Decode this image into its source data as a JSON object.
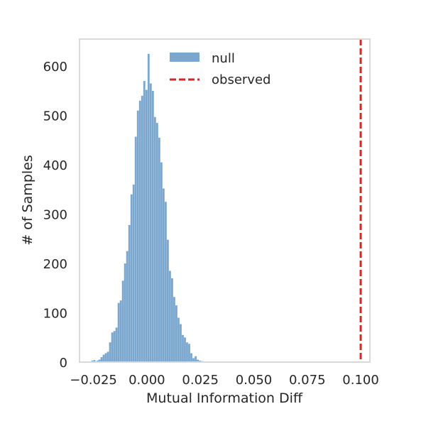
{
  "chart_data": {
    "type": "bar",
    "subtype": "histogram",
    "xlabel": "Mutual Information Diff",
    "ylabel": "# of Samples",
    "xlim": [
      -0.0315,
      0.1043
    ],
    "ylim": [
      0,
      655
    ],
    "xticks": [
      "−0.025",
      "0.000",
      "0.025",
      "0.050",
      "0.075",
      "0.100"
    ],
    "xtick_values": [
      -0.025,
      0.0,
      0.025,
      0.05,
      0.075,
      0.1
    ],
    "yticks": [
      "0",
      "100",
      "200",
      "300",
      "400",
      "500",
      "600"
    ],
    "ytick_values": [
      0,
      100,
      200,
      300,
      400,
      500,
      600
    ],
    "grid": false,
    "legend_position": "top-center",
    "series": [
      {
        "name": "null",
        "kind": "histogram",
        "color": "#7ba7cf",
        "bin_width": 0.00104,
        "bins": [
          [
            -0.0255,
            3
          ],
          [
            -0.0245,
            4
          ],
          [
            -0.023,
            3
          ],
          [
            -0.0222,
            5
          ],
          [
            -0.0212,
            10
          ],
          [
            -0.0202,
            15
          ],
          [
            -0.0192,
            18
          ],
          [
            -0.0182,
            21
          ],
          [
            -0.0172,
            40
          ],
          [
            -0.0162,
            60
          ],
          [
            -0.0152,
            63
          ],
          [
            -0.0142,
            70
          ],
          [
            -0.0132,
            120
          ],
          [
            -0.0122,
            125
          ],
          [
            -0.0112,
            165
          ],
          [
            -0.0102,
            200
          ],
          [
            -0.0092,
            225
          ],
          [
            -0.0082,
            278
          ],
          [
            -0.0072,
            340
          ],
          [
            -0.0062,
            360
          ],
          [
            -0.0052,
            457
          ],
          [
            -0.0042,
            510
          ],
          [
            -0.0032,
            530
          ],
          [
            -0.0022,
            540
          ],
          [
            -0.0012,
            570
          ],
          [
            -0.0002,
            552
          ],
          [
            0.0008,
            625
          ],
          [
            0.0018,
            565
          ],
          [
            0.0028,
            550
          ],
          [
            0.0038,
            497
          ],
          [
            0.0048,
            485
          ],
          [
            0.0058,
            455
          ],
          [
            0.0068,
            405
          ],
          [
            0.0078,
            352
          ],
          [
            0.0088,
            325
          ],
          [
            0.0098,
            248
          ],
          [
            0.0108,
            185
          ],
          [
            0.0118,
            170
          ],
          [
            0.0128,
            132
          ],
          [
            0.0138,
            115
          ],
          [
            0.0148,
            90
          ],
          [
            0.0158,
            77
          ],
          [
            0.0168,
            55
          ],
          [
            0.0178,
            50
          ],
          [
            0.0188,
            40
          ],
          [
            0.0198,
            37
          ],
          [
            0.0208,
            18
          ],
          [
            0.0218,
            8
          ],
          [
            0.0228,
            12
          ],
          [
            0.0238,
            5
          ],
          [
            0.0248,
            3
          ],
          [
            0.0258,
            2
          ],
          [
            0.0268,
            1
          ]
        ]
      },
      {
        "name": "observed",
        "kind": "vline",
        "x": 0.1,
        "color": "#d62728",
        "style": "dashed"
      }
    ]
  }
}
